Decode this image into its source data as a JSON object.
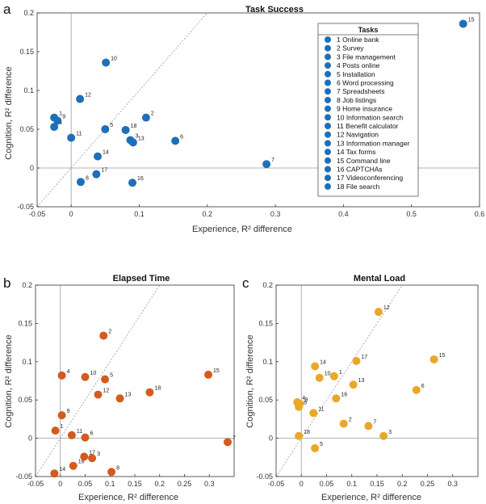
{
  "panel_letters": [
    "a",
    "b",
    "c"
  ],
  "legend": {
    "title": "Tasks",
    "items": [
      "1 Online bank",
      "2 Survey",
      "3 File management",
      "4 Posts online",
      "5 Installation",
      "6 Word processing",
      "7 Spreadsheets",
      "8 Job listings",
      "9 Home insurance",
      "10 Information search",
      "11 Benefit calculator",
      "12 Navigation",
      "13 Information manager",
      "14 Tax forms",
      "15 Command line",
      "16 CAPTCHAs",
      "17 Videoconferencing",
      "18 File search"
    ]
  },
  "colors": {
    "task_success": "#1f6fb8",
    "elapsed_time": "#d45a1f",
    "mental_load": "#e9a826",
    "reference_line": "#9a9a9a",
    "axis": "#333333"
  },
  "chart_data": [
    {
      "type": "scatter",
      "panel": "a",
      "title": "Task Success",
      "xlabel": "Experience, R² difference",
      "ylabel": "Cognition, R² difference",
      "xlim": [
        -0.05,
        0.6
      ],
      "ylim": [
        -0.05,
        0.2
      ],
      "xticks": [
        "-0.05",
        "0",
        "0.1",
        "0.2",
        "0.3",
        "0.4",
        "0.5",
        "0.6"
      ],
      "xtick_values": [
        -0.05,
        0,
        0.1,
        0.2,
        0.3,
        0.4,
        0.5,
        0.6
      ],
      "yticks": [
        "-0.05",
        "0",
        "0.05",
        "0.1",
        "0.15",
        "0.2"
      ],
      "ytick_values": [
        -0.05,
        0,
        0.05,
        0.1,
        0.15,
        0.2
      ],
      "reference_lines": [
        "x=0",
        "y=0",
        "y=x"
      ],
      "legend_position": "right",
      "points": [
        {
          "label": "1",
          "x": -0.025,
          "y": 0.065
        },
        {
          "label": "2",
          "x": 0.11,
          "y": 0.065
        },
        {
          "label": "3",
          "x": 0.087,
          "y": 0.036
        },
        {
          "label": "4",
          "x": -0.025,
          "y": 0.053
        },
        {
          "label": "5",
          "x": 0.05,
          "y": 0.05
        },
        {
          "label": "6",
          "x": 0.153,
          "y": 0.035
        },
        {
          "label": "7",
          "x": 0.287,
          "y": 0.005
        },
        {
          "label": "8",
          "x": 0.014,
          "y": -0.018
        },
        {
          "label": "9",
          "x": -0.02,
          "y": 0.061
        },
        {
          "label": "10",
          "x": 0.051,
          "y": 0.136
        },
        {
          "label": "11",
          "x": 0.0,
          "y": 0.039
        },
        {
          "label": "12",
          "x": 0.013,
          "y": 0.089
        },
        {
          "label": "13",
          "x": 0.091,
          "y": 0.033
        },
        {
          "label": "14",
          "x": 0.039,
          "y": 0.015
        },
        {
          "label": "15",
          "x": 0.576,
          "y": 0.186
        },
        {
          "label": "16",
          "x": 0.09,
          "y": -0.019
        },
        {
          "label": "17",
          "x": 0.037,
          "y": -0.008
        },
        {
          "label": "18",
          "x": 0.08,
          "y": 0.049
        }
      ]
    },
    {
      "type": "scatter",
      "panel": "b",
      "title": "Elapsed Time",
      "xlabel": "Experience, R² difference",
      "ylabel": "Cognition, R² difference",
      "xlim": [
        -0.05,
        0.35
      ],
      "ylim": [
        -0.05,
        0.2
      ],
      "xticks": [
        "-0.05",
        "0",
        "0.05",
        "0.1",
        "0.15",
        "0.2",
        "0.25",
        "0.3"
      ],
      "xtick_values": [
        -0.05,
        0,
        0.05,
        0.1,
        0.15,
        0.2,
        0.25,
        0.3
      ],
      "yticks": [
        "-0.05",
        "0",
        "0.05",
        "0.1",
        "0.15",
        "0.2"
      ],
      "ytick_values": [
        -0.05,
        0,
        0.05,
        0.1,
        0.15,
        0.2
      ],
      "reference_lines": [
        "x=0",
        "y=0",
        "y=x"
      ],
      "points": [
        {
          "label": "1",
          "x": -0.01,
          "y": 0.01
        },
        {
          "label": "2",
          "x": 0.087,
          "y": 0.134
        },
        {
          "label": "3",
          "x": 0.064,
          "y": -0.026
        },
        {
          "label": "4",
          "x": 0.003,
          "y": 0.082
        },
        {
          "label": "5",
          "x": 0.09,
          "y": 0.077
        },
        {
          "label": "6",
          "x": 0.05,
          "y": 0.001
        },
        {
          "label": "7",
          "x": 0.337,
          "y": -0.005
        },
        {
          "label": "8",
          "x": 0.103,
          "y": -0.044
        },
        {
          "label": "9",
          "x": 0.003,
          "y": 0.03
        },
        {
          "label": "10",
          "x": 0.05,
          "y": 0.08
        },
        {
          "label": "11",
          "x": 0.023,
          "y": 0.004
        },
        {
          "label": "12",
          "x": 0.076,
          "y": 0.057
        },
        {
          "label": "13",
          "x": 0.12,
          "y": 0.052
        },
        {
          "label": "14",
          "x": -0.012,
          "y": -0.046
        },
        {
          "label": "15",
          "x": 0.298,
          "y": 0.083
        },
        {
          "label": "16",
          "x": 0.026,
          "y": -0.036
        },
        {
          "label": "17",
          "x": 0.048,
          "y": -0.024
        },
        {
          "label": "18",
          "x": 0.18,
          "y": 0.06
        }
      ]
    },
    {
      "type": "scatter",
      "panel": "c",
      "title": "Mental Load",
      "xlabel": "Experience, R² difference",
      "ylabel": "Cognition, R² difference",
      "xlim": [
        -0.05,
        0.35
      ],
      "ylim": [
        -0.05,
        0.2
      ],
      "xticks": [
        "-0.05",
        "0",
        "0.05",
        "0.1",
        "0.15",
        "0.2",
        "0.25",
        "0.3"
      ],
      "xtick_values": [
        -0.05,
        0,
        0.05,
        0.1,
        0.15,
        0.2,
        0.25,
        0.3
      ],
      "yticks": [
        "-0.05",
        "0",
        "0.05",
        "0.1",
        "0.15",
        "0.2"
      ],
      "ytick_values": [
        -0.05,
        0,
        0.05,
        0.1,
        0.15,
        0.2
      ],
      "reference_lines": [
        "x=0",
        "y=0",
        "y=x"
      ],
      "points": [
        {
          "label": "1",
          "x": 0.065,
          "y": 0.081
        },
        {
          "label": "2",
          "x": 0.084,
          "y": 0.019
        },
        {
          "label": "3",
          "x": 0.163,
          "y": 0.003
        },
        {
          "label": "4",
          "x": -0.008,
          "y": 0.047
        },
        {
          "label": "5",
          "x": 0.027,
          "y": -0.013
        },
        {
          "label": "6",
          "x": 0.228,
          "y": 0.063
        },
        {
          "label": "7",
          "x": 0.133,
          "y": 0.016
        },
        {
          "label": "8",
          "x": -0.005,
          "y": 0.041
        },
        {
          "label": "9",
          "x": -0.003,
          "y": 0.045
        },
        {
          "label": "10",
          "x": 0.036,
          "y": 0.079
        },
        {
          "label": "11",
          "x": 0.024,
          "y": 0.033
        },
        {
          "label": "12",
          "x": 0.153,
          "y": 0.165
        },
        {
          "label": "13",
          "x": 0.103,
          "y": 0.07
        },
        {
          "label": "14",
          "x": 0.027,
          "y": 0.094
        },
        {
          "label": "15",
          "x": 0.263,
          "y": 0.103
        },
        {
          "label": "16",
          "x": 0.069,
          "y": 0.052
        },
        {
          "label": "17",
          "x": 0.109,
          "y": 0.101
        },
        {
          "label": "18",
          "x": -0.005,
          "y": 0.003
        }
      ]
    }
  ]
}
